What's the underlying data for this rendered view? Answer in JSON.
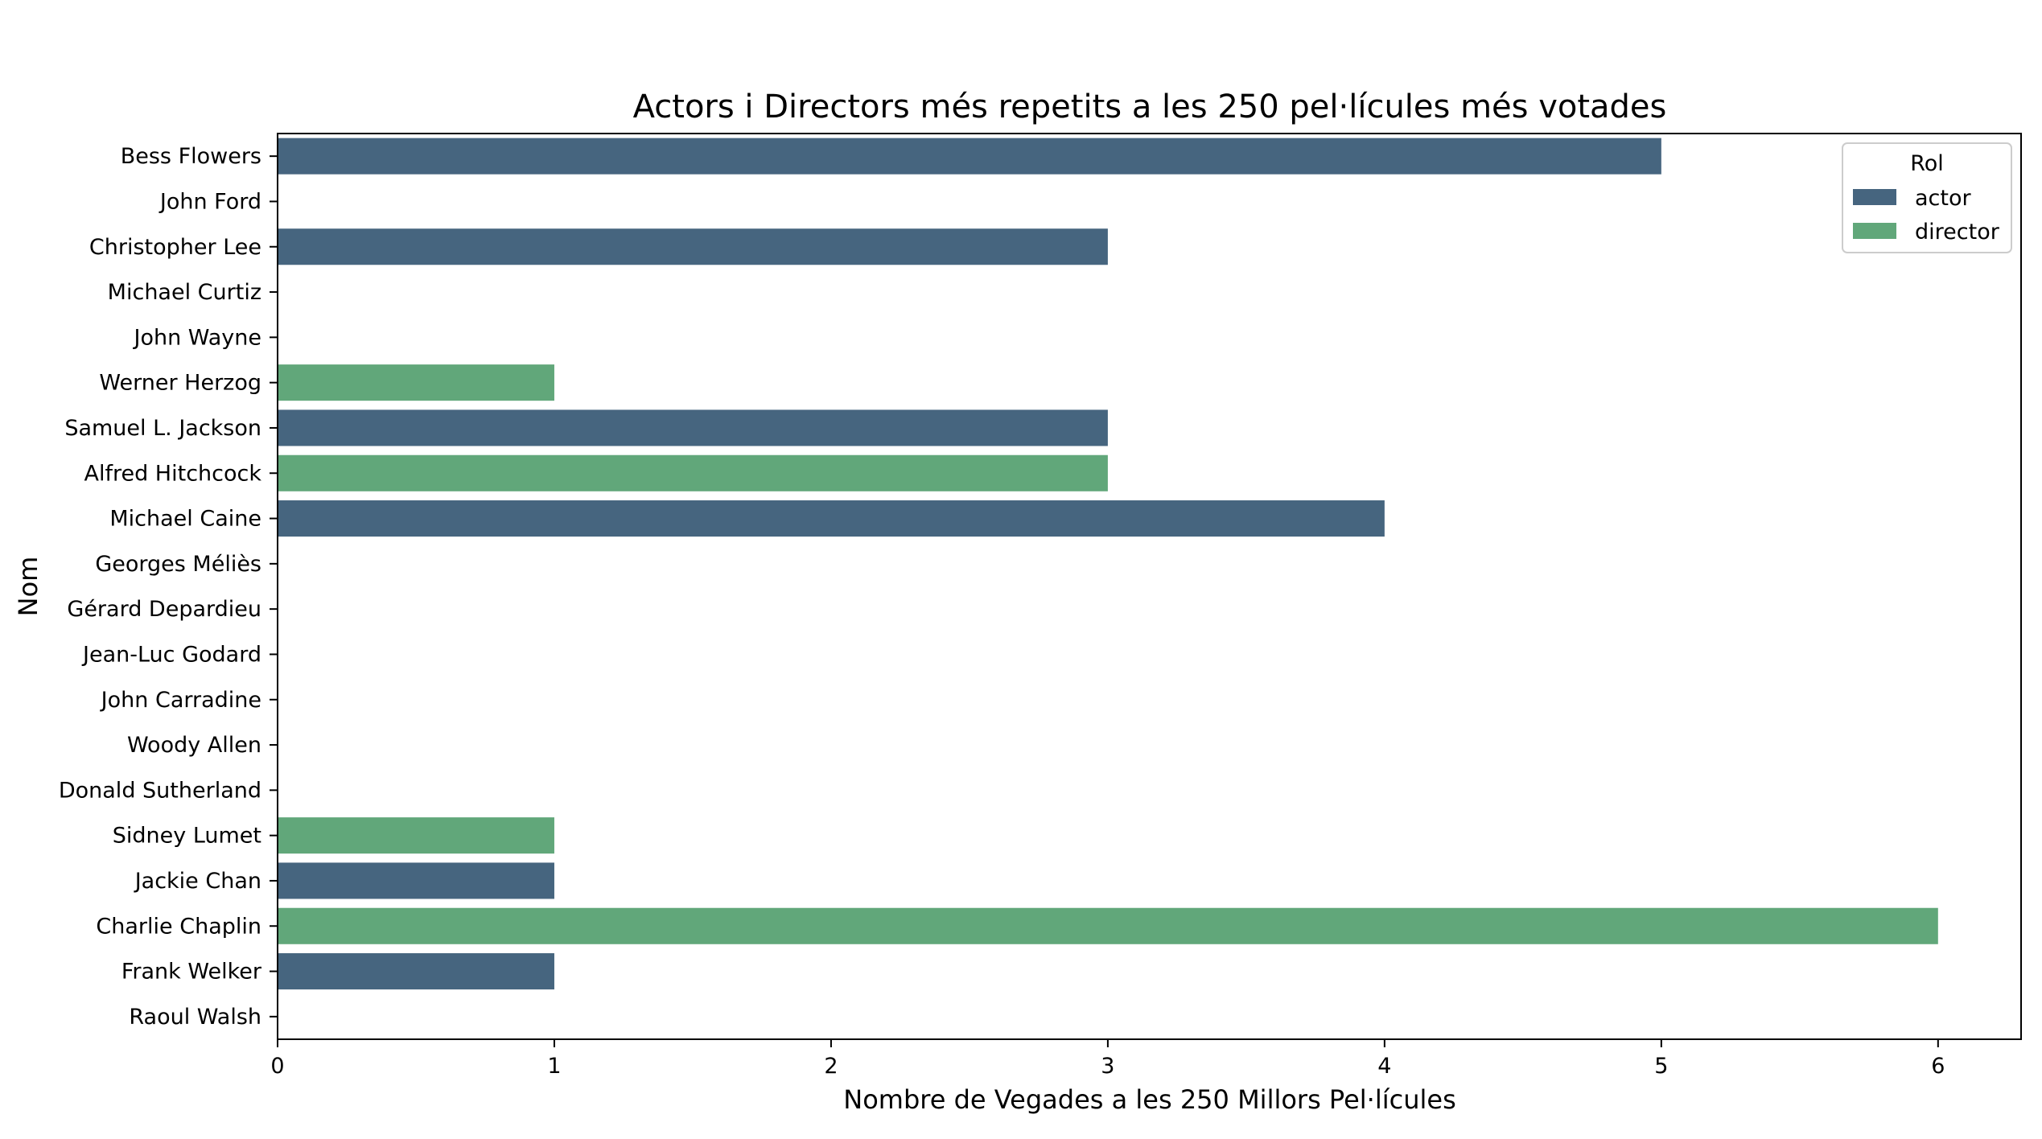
{
  "chart_data": {
    "type": "bar",
    "orientation": "horizontal",
    "title": "Actors i Directors més repetits a les 250 pel·lícules més votades",
    "xlabel": "Nombre de Vegades a les 250 Millors Pel·lícules",
    "ylabel": "Nom",
    "xlim": [
      0,
      6.3
    ],
    "xticks": [
      0,
      1,
      2,
      3,
      4,
      5,
      6
    ],
    "grid": false,
    "categories": [
      "Bess Flowers",
      "John Ford",
      "Christopher Lee",
      "Michael Curtiz",
      "John Wayne",
      "Werner Herzog",
      "Samuel L. Jackson",
      "Alfred Hitchcock",
      "Michael Caine",
      "Georges Méliès",
      "Gérard Depardieu",
      "Jean-Luc Godard",
      "John Carradine",
      "Woody Allen",
      "Donald Sutherland",
      "Sidney Lumet",
      "Jackie Chan",
      "Charlie Chaplin",
      "Frank Welker",
      "Raoul Walsh"
    ],
    "bars": [
      {
        "category": "Bess Flowers",
        "role": "actor",
        "value": 5
      },
      {
        "category": "John Ford",
        "role": "",
        "value": 0
      },
      {
        "category": "Christopher Lee",
        "role": "actor",
        "value": 3
      },
      {
        "category": "Michael Curtiz",
        "role": "",
        "value": 0
      },
      {
        "category": "John Wayne",
        "role": "",
        "value": 0
      },
      {
        "category": "Werner Herzog",
        "role": "director",
        "value": 1
      },
      {
        "category": "Samuel L. Jackson",
        "role": "actor",
        "value": 3
      },
      {
        "category": "Alfred Hitchcock",
        "role": "director",
        "value": 3
      },
      {
        "category": "Michael Caine",
        "role": "actor",
        "value": 4
      },
      {
        "category": "Georges Méliès",
        "role": "",
        "value": 0
      },
      {
        "category": "Gérard Depardieu",
        "role": "",
        "value": 0
      },
      {
        "category": "Jean-Luc Godard",
        "role": "",
        "value": 0
      },
      {
        "category": "John Carradine",
        "role": "",
        "value": 0
      },
      {
        "category": "Woody Allen",
        "role": "",
        "value": 0
      },
      {
        "category": "Donald Sutherland",
        "role": "",
        "value": 0
      },
      {
        "category": "Sidney Lumet",
        "role": "director",
        "value": 1
      },
      {
        "category": "Jackie Chan",
        "role": "actor",
        "value": 1
      },
      {
        "category": "Charlie Chaplin",
        "role": "director",
        "value": 6
      },
      {
        "category": "Frank Welker",
        "role": "actor",
        "value": 1
      },
      {
        "category": "Raoul Walsh",
        "role": "",
        "value": 0
      }
    ],
    "legend": {
      "title": "Rol",
      "placement": "top-right",
      "entries": [
        {
          "label": "actor",
          "color": "#46657f"
        },
        {
          "label": "director",
          "color": "#61a77a"
        }
      ]
    }
  }
}
